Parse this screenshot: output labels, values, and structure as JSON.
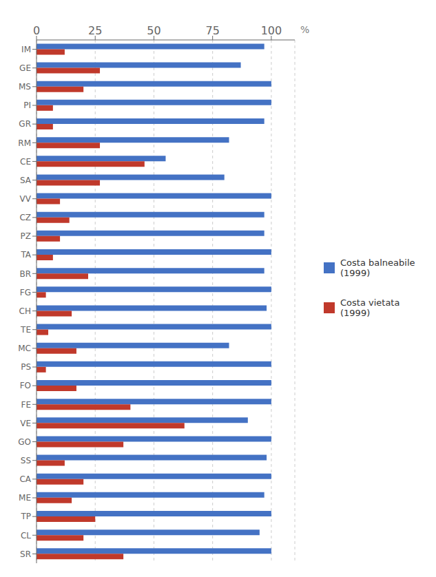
{
  "chart_data": {
    "type": "bar",
    "orientation": "horizontal",
    "categories": [
      "IM",
      "GE",
      "MS",
      "PI",
      "GR",
      "RM",
      "CE",
      "SA",
      "VV",
      "CZ",
      "PZ",
      "TA",
      "BR",
      "FG",
      "CH",
      "TE",
      "MC",
      "PS",
      "FO",
      "FE",
      "VE",
      "GO",
      "SS",
      "CA",
      "ME",
      "TP",
      "CL",
      "SR"
    ],
    "series": [
      {
        "name": "Costa balneabile\n(1999)",
        "color": "#4472c4",
        "values": [
          97,
          87,
          100,
          100,
          97,
          82,
          55,
          80,
          100,
          97,
          97,
          100,
          97,
          100,
          98,
          100,
          82,
          100,
          100,
          100,
          90,
          100,
          98,
          100,
          97,
          100,
          95,
          100
        ]
      },
      {
        "name": "Costa vietata\n(1999)",
        "color": "#c0392b",
        "values": [
          12,
          27,
          20,
          7,
          7,
          27,
          46,
          27,
          10,
          14,
          10,
          7,
          22,
          4,
          15,
          5,
          17,
          4,
          17,
          40,
          63,
          37,
          12,
          20,
          15,
          25,
          20,
          37
        ]
      }
    ],
    "xlim": [
      0,
      110
    ],
    "xticks": [
      0,
      25,
      50,
      75,
      100
    ],
    "grid": true,
    "annotations": [
      "%"
    ],
    "legend": "right"
  }
}
